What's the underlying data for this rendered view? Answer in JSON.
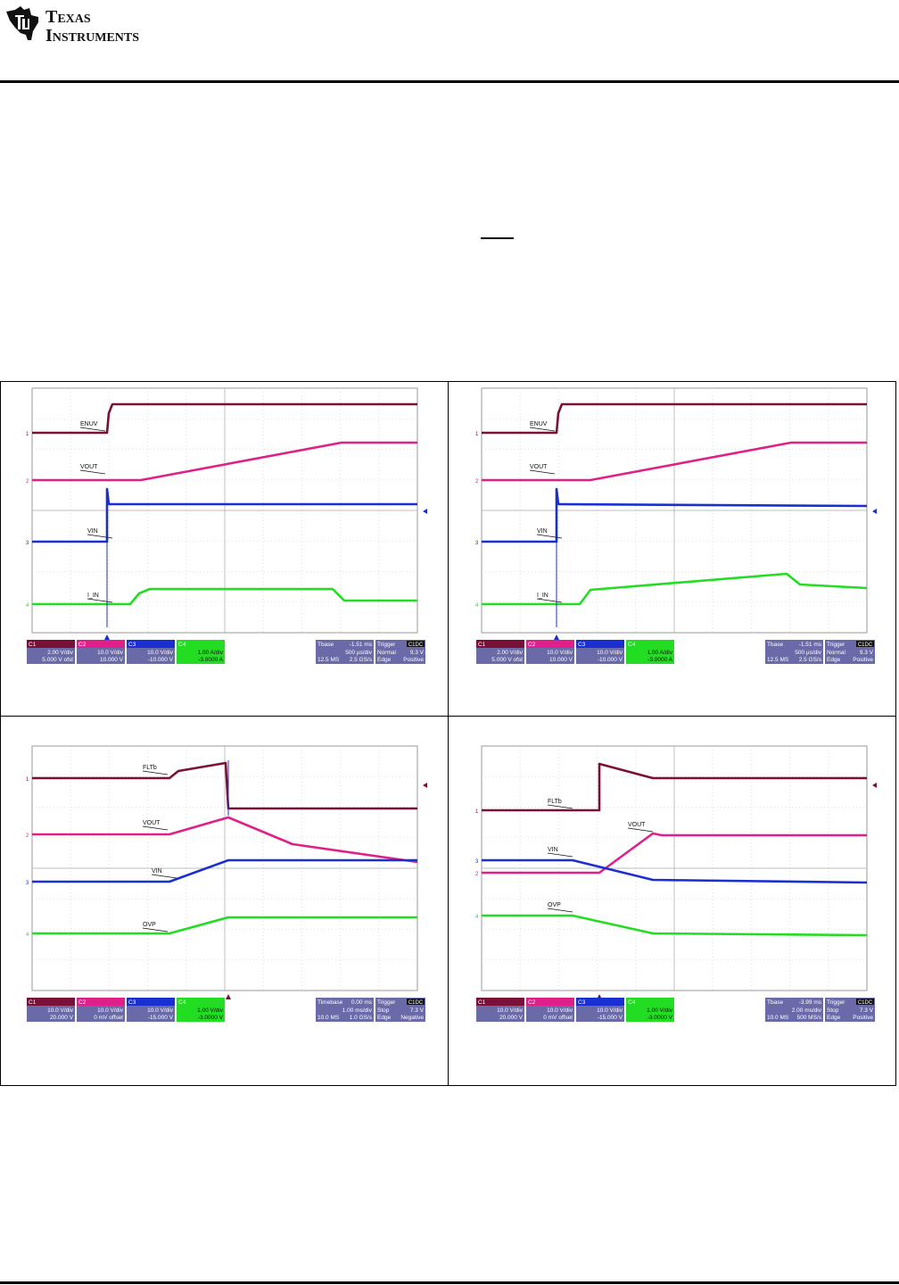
{
  "header": {
    "brand_line1": "Texas",
    "brand_line2": "Instruments",
    "logo_name": "ti-logo"
  },
  "scopes": [
    {
      "traces": [
        {
          "name": "ENUV",
          "color": "#7a1038"
        },
        {
          "name": "VOUT",
          "color": "#e0208a"
        },
        {
          "name": "VIN",
          "color": "#1a2fd0"
        },
        {
          "name": "I_IN",
          "color": "#22dd22"
        }
      ],
      "channels": [
        {
          "ch": "C1",
          "l1": "2.00 V/div",
          "l2": "5.000 V ofst"
        },
        {
          "ch": "C2",
          "l1": "10.0 V/div",
          "l2": "10.000 V"
        },
        {
          "ch": "C3",
          "l1": "10.0 V/div",
          "l2": "-10.000 V"
        },
        {
          "ch": "C4",
          "l1": "1.00 A/div",
          "l2": "-3.0000 A"
        }
      ],
      "tbase": {
        "head": "Tbase",
        "value": "-1.51 ms",
        "l1": "500 µs/div",
        "l2a": "12.5 MS",
        "l2b": "2.5 GS/s"
      },
      "trigger": {
        "head": "Trigger",
        "tag": "C1DC",
        "l1a": "Normal",
        "l1b": "9.3 V",
        "l2a": "Edge",
        "l2b": "Positive"
      }
    },
    {
      "traces": [
        {
          "name": "ENUV",
          "color": "#7a1038"
        },
        {
          "name": "VOUT",
          "color": "#e0208a"
        },
        {
          "name": "VIN",
          "color": "#1a2fd0"
        },
        {
          "name": "I_IN",
          "color": "#22dd22"
        }
      ],
      "channels": [
        {
          "ch": "C1",
          "l1": "2.00 V/div",
          "l2": "5.000 V ofst"
        },
        {
          "ch": "C2",
          "l1": "10.0 V/div",
          "l2": "10.000 V"
        },
        {
          "ch": "C3",
          "l1": "10.0 V/div",
          "l2": "-10.000 V"
        },
        {
          "ch": "C4",
          "l1": "1.00 A/div",
          "l2": "-3.0000 A"
        }
      ],
      "tbase": {
        "head": "Tbase",
        "value": "-1.51 ms",
        "l1": "500 µs/div",
        "l2a": "12.5 MS",
        "l2b": "2.5 GS/s"
      },
      "trigger": {
        "head": "Trigger",
        "tag": "C1DC",
        "l1a": "Normal",
        "l1b": "9.3 V",
        "l2a": "Edge",
        "l2b": "Positive"
      }
    },
    {
      "traces": [
        {
          "name": "FLTb",
          "color": "#7a1038"
        },
        {
          "name": "VOUT",
          "color": "#e0208a"
        },
        {
          "name": "VIN",
          "color": "#1a2fd0"
        },
        {
          "name": "OVP",
          "color": "#22dd22"
        }
      ],
      "channels": [
        {
          "ch": "C1",
          "l1": "10.0 V/div",
          "l2": "20.000 V"
        },
        {
          "ch": "C2",
          "l1": "10.0 V/div",
          "l2": "0 mV offset"
        },
        {
          "ch": "C3",
          "l1": "10.0 V/div",
          "l2": "-15.000 V"
        },
        {
          "ch": "C4",
          "l1": "1.00 V/div",
          "l2": "-3.0000 V"
        }
      ],
      "tbase": {
        "head": "Timebase",
        "value": "0.00 ms",
        "l1": "1.00 ms/div",
        "l2a": "10.0 MS",
        "l2b": "1.0 GS/s"
      },
      "trigger": {
        "head": "Trigger",
        "tag": "C1DC",
        "l1a": "Stop",
        "l1b": "7.3 V",
        "l2a": "Edge",
        "l2b": "Negative"
      }
    },
    {
      "traces": [
        {
          "name": "FLTb",
          "color": "#7a1038"
        },
        {
          "name": "VOUT",
          "color": "#e0208a"
        },
        {
          "name": "VIN",
          "color": "#1a2fd0"
        },
        {
          "name": "OVP",
          "color": "#22dd22"
        }
      ],
      "channels": [
        {
          "ch": "C1",
          "l1": "10.0 V/div",
          "l2": "20.000 V"
        },
        {
          "ch": "C2",
          "l1": "10.0 V/div",
          "l2": "0 mV offset"
        },
        {
          "ch": "C3",
          "l1": "10.0 V/div",
          "l2": "-15.000 V"
        },
        {
          "ch": "C4",
          "l1": "1.00 V/div",
          "l2": "-3.0000 V"
        }
      ],
      "tbase": {
        "head": "Tbase",
        "value": "-3.99 ms",
        "l1": "2.00 ms/div",
        "l2a": "10.0 MS",
        "l2b": "500 MS/s"
      },
      "trigger": {
        "head": "Trigger",
        "tag": "C1DC",
        "l1a": "Stop",
        "l1b": "7.3 V",
        "l2a": "Edge",
        "l2b": "Positive"
      }
    }
  ]
}
